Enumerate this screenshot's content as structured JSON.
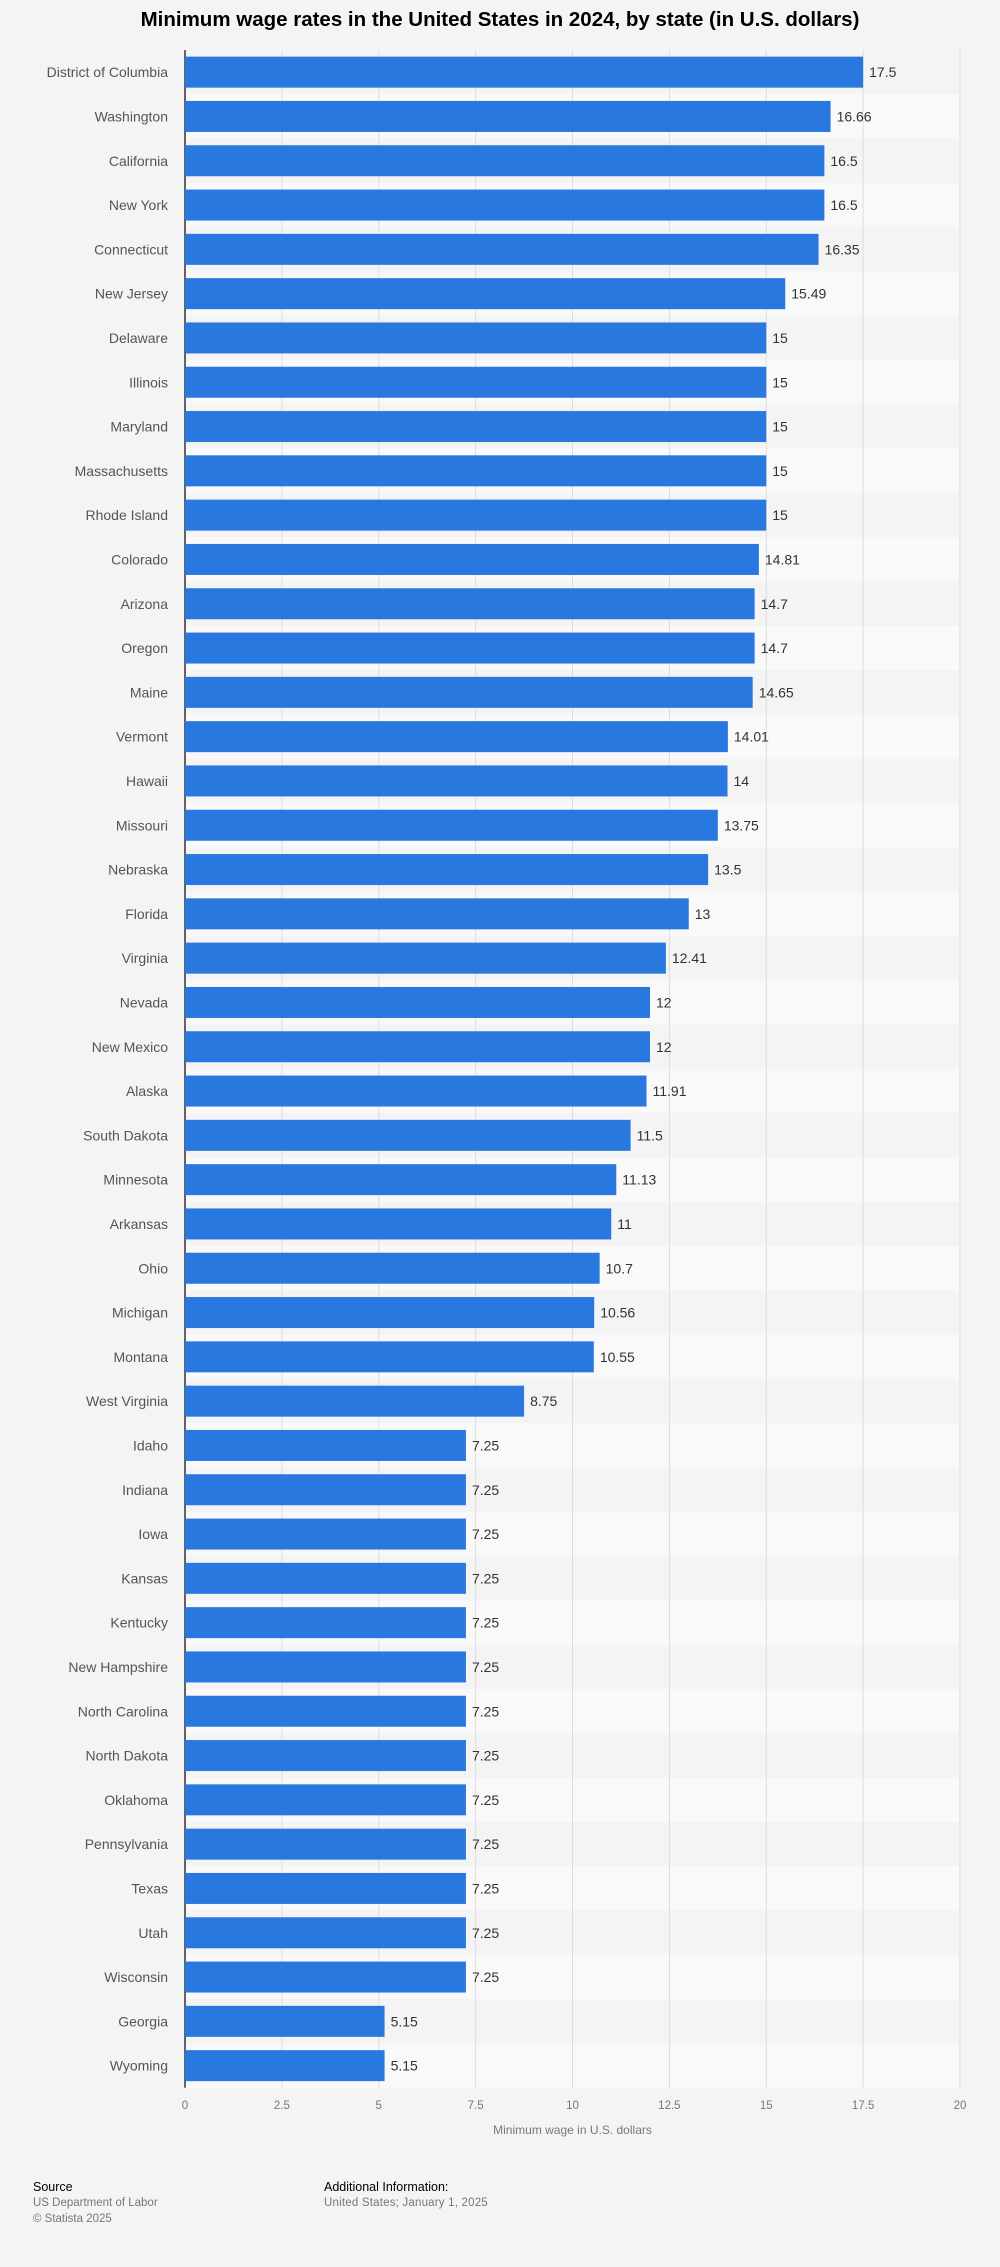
{
  "title": "Minimum wage rates in the United States in 2024, by state (in U.S. dollars)",
  "footer": {
    "source_label": "Source",
    "source_lines": [
      "US Department of Labor",
      "© Statista 2025"
    ],
    "info_label": "Additional Information:",
    "info_line": "United States; January 1, 2025"
  },
  "colors": {
    "bar": "#2878e0",
    "band_light": "#f9f9f9",
    "band_dark": "#f4f4f4",
    "grid": "#dddddd",
    "label": "#555555",
    "value_label": "#333333"
  },
  "chart_data": {
    "type": "bar",
    "orientation": "horizontal",
    "categories": [
      "District of Columbia",
      "Washington",
      "California",
      "New York",
      "Connecticut",
      "New Jersey",
      "Delaware",
      "Illinois",
      "Maryland",
      "Massachusetts",
      "Rhode Island",
      "Colorado",
      "Arizona",
      "Oregon",
      "Maine",
      "Vermont",
      "Hawaii",
      "Missouri",
      "Nebraska",
      "Florida",
      "Virginia",
      "Nevada",
      "New Mexico",
      "Alaska",
      "South Dakota",
      "Minnesota",
      "Arkansas",
      "Ohio",
      "Michigan",
      "Montana",
      "West Virginia",
      "Idaho",
      "Indiana",
      "Iowa",
      "Kansas",
      "Kentucky",
      "New Hampshire",
      "North Carolina",
      "North Dakota",
      "Oklahoma",
      "Pennsylvania",
      "Texas",
      "Utah",
      "Wisconsin",
      "Georgia",
      "Wyoming"
    ],
    "values": [
      17.5,
      16.66,
      16.5,
      16.5,
      16.35,
      15.49,
      15,
      15,
      15,
      15,
      15,
      14.81,
      14.7,
      14.7,
      14.65,
      14.01,
      14,
      13.75,
      13.5,
      13,
      12.41,
      12,
      12,
      11.91,
      11.5,
      11.13,
      11,
      10.7,
      10.56,
      10.55,
      8.75,
      7.25,
      7.25,
      7.25,
      7.25,
      7.25,
      7.25,
      7.25,
      7.25,
      7.25,
      7.25,
      7.25,
      7.25,
      7.25,
      5.15,
      5.15
    ],
    "xlabel": "Minimum wage in U.S. dollars",
    "ylabel": "",
    "xlim": [
      0,
      20
    ],
    "xticks": [
      "0",
      "2.5",
      "5",
      "7.5",
      "10",
      "12.5",
      "15",
      "17.5",
      "20"
    ],
    "grid": true,
    "data_labels": true,
    "legend": "none"
  }
}
